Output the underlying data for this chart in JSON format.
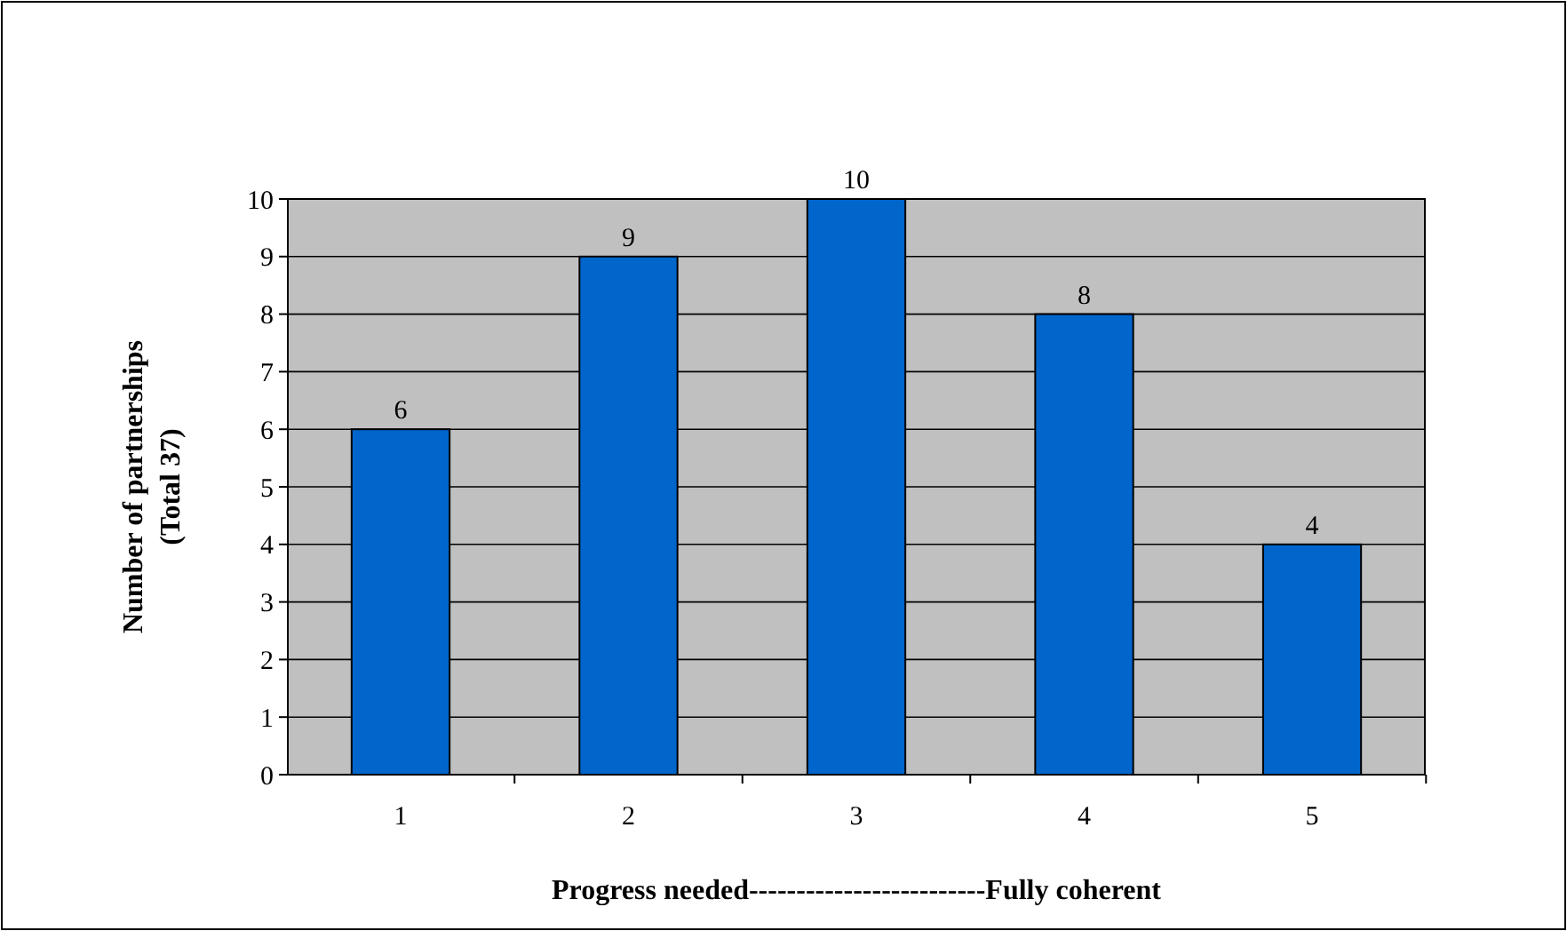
{
  "chart_data": {
    "type": "bar",
    "categories": [
      "1",
      "2",
      "3",
      "4",
      "5"
    ],
    "values": [
      6,
      9,
      10,
      8,
      4
    ],
    "color": "#0066cc",
    "ylim": [
      0,
      10
    ],
    "yticks": [
      0,
      1,
      2,
      3,
      4,
      5,
      6,
      7,
      8,
      9,
      10
    ],
    "grid": "y",
    "data_labels": true,
    "xlabel": "Progress needed-------------------------Fully coherent",
    "ylabel": "Number of partnerships\n(Total 37)"
  }
}
